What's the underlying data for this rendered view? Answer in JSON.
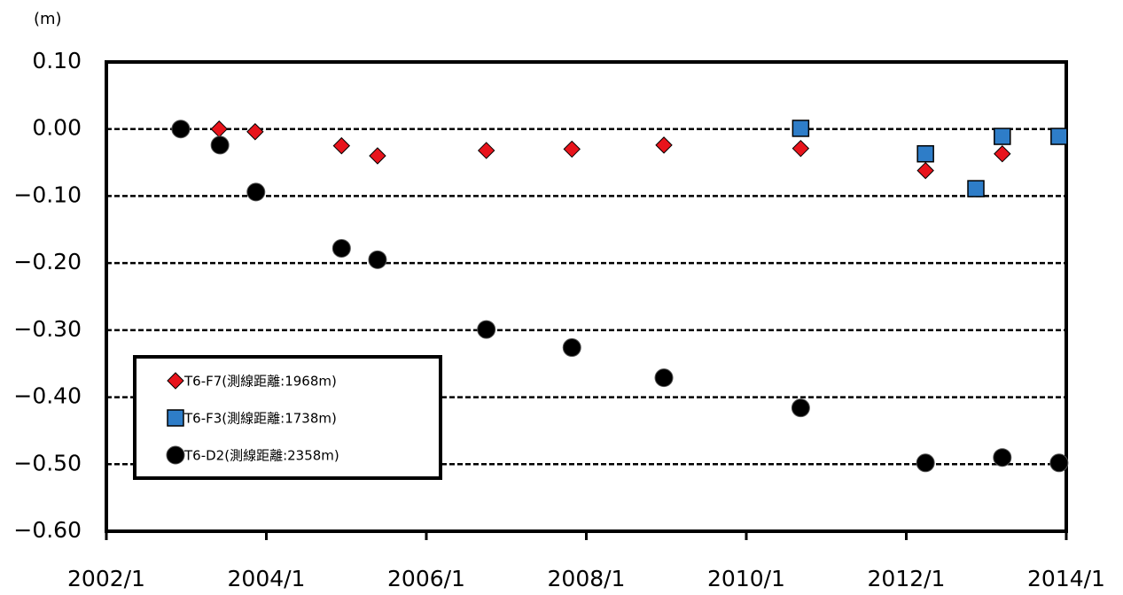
{
  "chart_data": {
    "type": "scatter",
    "y_label": "(m)",
    "xlim": [
      2002,
      2014
    ],
    "xticks": [
      {
        "value": 2002,
        "label": "2002/1"
      },
      {
        "value": 2004,
        "label": "2004/1"
      },
      {
        "value": 2006,
        "label": "2006/1"
      },
      {
        "value": 2008,
        "label": "2008/1"
      },
      {
        "value": 2010,
        "label": "2010/1"
      },
      {
        "value": 2012,
        "label": "2012/1"
      },
      {
        "value": 2014,
        "label": "2014/1"
      }
    ],
    "ylim": [
      -0.6,
      0.1
    ],
    "yticks": [
      {
        "value": 0.1,
        "label": "0.10"
      },
      {
        "value": 0,
        "label": "0.00"
      },
      {
        "value": -0.1,
        "label": "−0.10"
      },
      {
        "value": -0.2,
        "label": "−0.20"
      },
      {
        "value": -0.3,
        "label": "−0.30"
      },
      {
        "value": -0.4,
        "label": "−0.40"
      },
      {
        "value": -0.5,
        "label": "−0.50"
      },
      {
        "value": -0.6,
        "label": "−0.60"
      }
    ],
    "grid": true,
    "legend": "lower left",
    "series": [
      {
        "name": "T6-F7(測線距離:1968m)",
        "color": "#e8141c",
        "marker": "diamond",
        "x": [
          2003.41,
          2003.86,
          2004.94,
          2005.39,
          2006.75,
          2007.82,
          2008.97,
          2010.68,
          2012.24,
          2013.2
        ],
        "values": [
          0.0,
          -0.004,
          -0.025,
          -0.04,
          -0.032,
          -0.03,
          -0.024,
          -0.029,
          -0.062,
          -0.037
        ]
      },
      {
        "name": "T6-F3(測線距離:1738m)",
        "color": "#2e7dc8",
        "marker": "square",
        "x": [
          2010.68,
          2012.24,
          2012.87,
          2013.2,
          2013.91
        ],
        "values": [
          0.001,
          -0.037,
          -0.089,
          -0.011,
          -0.011
        ]
      },
      {
        "name": "T6-D2(測線距離:2358m)",
        "color": "#000000",
        "marker": "circle",
        "x": [
          2002.93,
          2003.42,
          2003.87,
          2004.94,
          2005.39,
          2006.75,
          2007.82,
          2008.97,
          2010.68,
          2012.24,
          2013.2,
          2013.91
        ],
        "values": [
          0.0,
          -0.024,
          -0.094,
          -0.178,
          -0.195,
          -0.299,
          -0.326,
          -0.371,
          -0.416,
          -0.498,
          -0.49,
          -0.498
        ]
      }
    ]
  }
}
